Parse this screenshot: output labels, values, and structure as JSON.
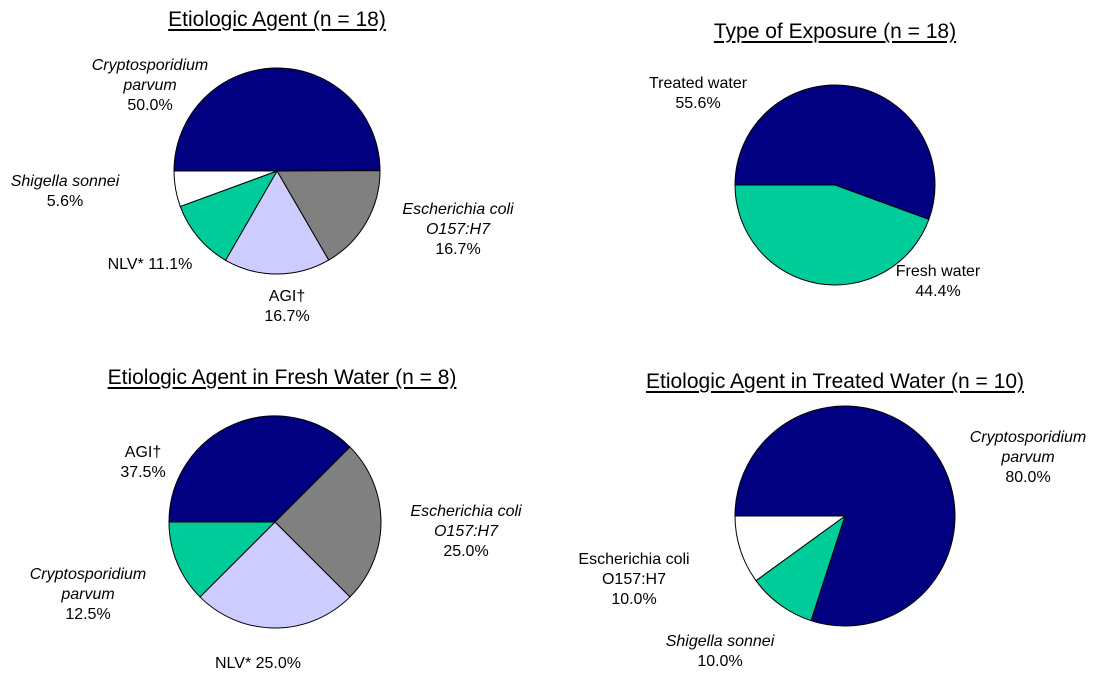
{
  "chart_data": [
    {
      "type": "pie",
      "title": "Etiologic Agent (n = 18)",
      "categories": [
        "Cryptosporidium parvum",
        "Escherichia coli O157:H7",
        "AGI†",
        "NLV*",
        "Shigella sonnei"
      ],
      "values": [
        50.0,
        16.7,
        16.7,
        11.1,
        5.6
      ],
      "value_labels": [
        "50.0%",
        "16.7%",
        "16.7%",
        "11.1%",
        "5.6%"
      ],
      "colors": [
        "#000080",
        "#808080",
        "#ccccff",
        "#00cc99",
        "#ffffff"
      ],
      "italic_labels": [
        true,
        true,
        false,
        false,
        true
      ]
    },
    {
      "type": "pie",
      "title": "Type of Exposure (n = 18)",
      "categories": [
        "Treated water",
        "Fresh water"
      ],
      "values": [
        55.6,
        44.4
      ],
      "value_labels": [
        "55.6%",
        "44.4%"
      ],
      "colors": [
        "#000080",
        "#00cc99"
      ],
      "italic_labels": [
        false,
        false
      ]
    },
    {
      "type": "pie",
      "title": "Etiologic Agent in Fresh Water (n = 8)",
      "categories": [
        "AGI†",
        "Escherichia coli O157:H7",
        "NLV*",
        "Cryptosporidium parvum"
      ],
      "values": [
        37.5,
        25.0,
        25.0,
        12.5
      ],
      "value_labels": [
        "37.5%",
        "25.0%",
        "25.0%",
        "12.5%"
      ],
      "colors": [
        "#000080",
        "#808080",
        "#ccccff",
        "#00cc99"
      ],
      "italic_labels": [
        false,
        true,
        false,
        true
      ]
    },
    {
      "type": "pie",
      "title": "Etiologic Agent in Treated Water (n = 10)",
      "categories": [
        "Cryptosporidium parvum",
        "Shigella sonnei",
        "Escherichia coli O157:H7"
      ],
      "values": [
        80.0,
        10.0,
        10.0
      ],
      "value_labels": [
        "80.0%",
        "10.0%",
        "10.0%"
      ],
      "colors": [
        "#000080",
        "#00cc99",
        "#ffffff"
      ],
      "italic_labels": [
        true,
        true,
        false
      ]
    }
  ]
}
